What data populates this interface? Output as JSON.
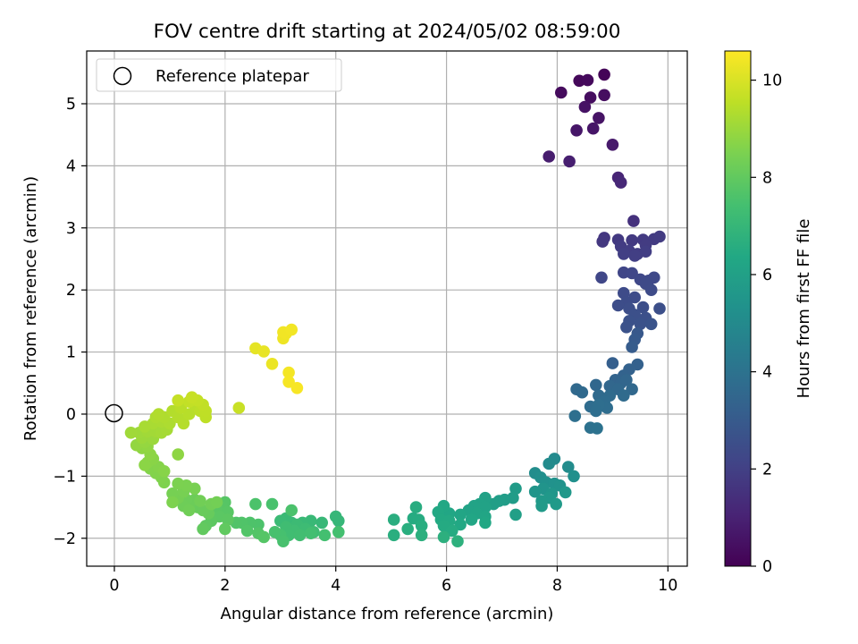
{
  "chart_data": {
    "type": "scatter",
    "title": "FOV centre drift starting at 2024/05/02 08:59:00",
    "xlabel": "Angular distance from reference (arcmin)",
    "ylabel": "Rotation from reference (arcmin)",
    "xlim": [
      -0.5,
      10.35
    ],
    "ylim": [
      -2.45,
      5.85
    ],
    "xticks": [
      "0",
      "2",
      "4",
      "6",
      "8",
      "10"
    ],
    "yticks": [
      "−2",
      "−1",
      "0",
      "1",
      "2",
      "3",
      "4",
      "5"
    ],
    "grid": true,
    "legend": {
      "position": "top-left",
      "entries": [
        "Reference platepar"
      ]
    },
    "reference_point": {
      "x": 0,
      "y": 0
    },
    "colorbar": {
      "label": "Hours from first FF file",
      "range": [
        0,
        10.6
      ],
      "ticks": [
        "0",
        "2",
        "4",
        "6",
        "8",
        "10"
      ],
      "colormap": "viridis"
    },
    "series": [
      {
        "points": [
          [
            8.85,
            5.47,
            0.1
          ],
          [
            8.4,
            5.37,
            0.2
          ],
          [
            8.55,
            5.38,
            0.25
          ],
          [
            8.07,
            5.18,
            0.3
          ],
          [
            8.6,
            5.1,
            0.35
          ],
          [
            8.85,
            5.14,
            0.4
          ],
          [
            8.5,
            4.95,
            0.5
          ],
          [
            8.75,
            4.77,
            0.55
          ],
          [
            8.65,
            4.6,
            0.6
          ],
          [
            8.35,
            4.57,
            0.65
          ],
          [
            9.0,
            4.34,
            0.75
          ],
          [
            7.85,
            4.15,
            0.85
          ],
          [
            8.22,
            4.07,
            0.9
          ],
          [
            9.1,
            3.81,
            1.1
          ],
          [
            9.15,
            3.73,
            1.2
          ],
          [
            9.38,
            3.11,
            1.5
          ],
          [
            8.85,
            2.84,
            1.7
          ],
          [
            8.82,
            2.78,
            1.72
          ],
          [
            9.1,
            2.81,
            1.75
          ],
          [
            9.35,
            2.8,
            1.78
          ],
          [
            9.55,
            2.81,
            1.8
          ],
          [
            9.75,
            2.82,
            1.82
          ],
          [
            9.85,
            2.86,
            1.84
          ],
          [
            9.6,
            2.72,
            1.85
          ],
          [
            9.15,
            2.7,
            1.86
          ],
          [
            9.3,
            2.63,
            1.88
          ],
          [
            9.45,
            2.58,
            1.9
          ],
          [
            9.6,
            2.62,
            1.92
          ],
          [
            9.2,
            2.58,
            1.94
          ],
          [
            9.4,
            2.55,
            1.95
          ],
          [
            9.2,
            2.28,
            2.2
          ],
          [
            9.35,
            2.27,
            2.22
          ],
          [
            8.8,
            2.2,
            2.25
          ],
          [
            9.5,
            2.17,
            2.28
          ],
          [
            9.65,
            2.15,
            2.3
          ],
          [
            9.75,
            2.2,
            2.32
          ],
          [
            9.6,
            2.1,
            2.35
          ],
          [
            9.7,
            2.0,
            2.38
          ],
          [
            9.2,
            1.95,
            2.4
          ],
          [
            9.4,
            1.88,
            2.42
          ],
          [
            9.25,
            1.8,
            2.45
          ],
          [
            9.1,
            1.75,
            2.48
          ],
          [
            9.3,
            1.7,
            2.5
          ],
          [
            9.55,
            1.72,
            2.52
          ],
          [
            9.85,
            1.7,
            2.55
          ],
          [
            9.4,
            1.6,
            2.58
          ],
          [
            9.6,
            1.55,
            2.6
          ],
          [
            9.3,
            1.5,
            2.62
          ],
          [
            9.5,
            1.45,
            2.65
          ],
          [
            9.25,
            1.4,
            2.68
          ],
          [
            9.7,
            1.45,
            2.7
          ],
          [
            9.45,
            1.3,
            2.9
          ],
          [
            9.4,
            1.2,
            3.0
          ],
          [
            9.35,
            1.08,
            3.05
          ],
          [
            9.0,
            0.82,
            3.2
          ],
          [
            9.45,
            0.8,
            3.25
          ],
          [
            9.3,
            0.72,
            3.3
          ],
          [
            9.2,
            0.62,
            3.35
          ],
          [
            9.05,
            0.55,
            3.4
          ],
          [
            9.15,
            0.5,
            3.45
          ],
          [
            9.25,
            0.55,
            3.48
          ],
          [
            8.95,
            0.45,
            3.5
          ],
          [
            8.7,
            0.47,
            3.52
          ],
          [
            9.1,
            0.4,
            3.55
          ],
          [
            9.35,
            0.4,
            3.58
          ],
          [
            8.35,
            0.4,
            3.6
          ],
          [
            8.45,
            0.35,
            3.62
          ],
          [
            8.75,
            0.3,
            3.65
          ],
          [
            8.95,
            0.3,
            3.68
          ],
          [
            9.2,
            0.3,
            3.7
          ],
          [
            8.85,
            0.2,
            3.72
          ],
          [
            8.6,
            0.12,
            3.75
          ],
          [
            8.9,
            0.1,
            3.78
          ],
          [
            8.75,
            0.15,
            3.8
          ],
          [
            8.7,
            0.05,
            3.82
          ],
          [
            8.32,
            -0.03,
            3.85
          ],
          [
            8.6,
            -0.22,
            3.95
          ],
          [
            8.72,
            -0.23,
            4.0
          ],
          [
            7.95,
            -0.72,
            5.0
          ],
          [
            7.85,
            -0.8,
            5.05
          ],
          [
            8.2,
            -0.85,
            5.1
          ],
          [
            7.6,
            -0.95,
            5.15
          ],
          [
            7.7,
            -1.02,
            5.2
          ],
          [
            8.3,
            -1.0,
            5.25
          ],
          [
            7.8,
            -1.1,
            5.3
          ],
          [
            7.95,
            -1.12,
            5.35
          ],
          [
            8.05,
            -1.15,
            5.4
          ],
          [
            7.75,
            -1.2,
            5.45
          ],
          [
            7.6,
            -1.25,
            5.5
          ],
          [
            7.9,
            -1.28,
            5.55
          ],
          [
            8.15,
            -1.26,
            5.6
          ],
          [
            7.85,
            -1.35,
            5.62
          ],
          [
            7.72,
            -1.4,
            5.65
          ],
          [
            7.98,
            -1.45,
            5.7
          ],
          [
            7.72,
            -1.48,
            5.72
          ],
          [
            7.25,
            -1.2,
            5.78
          ],
          [
            7.2,
            -1.35,
            5.8
          ],
          [
            7.05,
            -1.38,
            5.85
          ],
          [
            6.95,
            -1.4,
            5.88
          ],
          [
            6.85,
            -1.45,
            5.9
          ],
          [
            7.25,
            -1.62,
            5.95
          ],
          [
            6.7,
            -1.35,
            6.05
          ],
          [
            6.6,
            -1.45,
            6.08
          ],
          [
            6.7,
            -1.5,
            6.1
          ],
          [
            6.5,
            -1.48,
            6.12
          ],
          [
            6.4,
            -1.55,
            6.15
          ],
          [
            6.55,
            -1.6,
            6.18
          ],
          [
            6.7,
            -1.65,
            6.2
          ],
          [
            6.25,
            -1.62,
            6.22
          ],
          [
            6.45,
            -1.7,
            6.25
          ],
          [
            6.05,
            -1.6,
            6.28
          ],
          [
            5.95,
            -1.48,
            6.3
          ],
          [
            6.7,
            -1.75,
            6.32
          ],
          [
            6.25,
            -1.78,
            6.35
          ],
          [
            5.85,
            -1.58,
            6.38
          ],
          [
            5.9,
            -1.7,
            6.4
          ],
          [
            6.05,
            -1.72,
            6.42
          ],
          [
            5.95,
            -1.8,
            6.45
          ],
          [
            6.1,
            -1.88,
            6.48
          ],
          [
            5.4,
            -1.68,
            6.5
          ],
          [
            5.5,
            -1.7,
            6.52
          ],
          [
            5.45,
            -1.5,
            6.55
          ],
          [
            5.55,
            -1.8,
            6.58
          ],
          [
            5.05,
            -1.7,
            6.6
          ],
          [
            5.3,
            -1.85,
            6.62
          ],
          [
            5.05,
            -1.95,
            6.65
          ],
          [
            5.55,
            -1.95,
            6.68
          ],
          [
            5.95,
            -1.98,
            6.7
          ],
          [
            6.2,
            -2.05,
            6.72
          ],
          [
            4.0,
            -1.65,
            7.0
          ],
          [
            4.05,
            -1.72,
            7.02
          ],
          [
            3.75,
            -1.75,
            7.05
          ],
          [
            3.55,
            -1.72,
            7.08
          ],
          [
            3.4,
            -1.75,
            7.1
          ],
          [
            3.2,
            -1.75,
            7.12
          ],
          [
            3.1,
            -1.68,
            7.15
          ],
          [
            3.0,
            -1.72,
            7.18
          ],
          [
            3.3,
            -1.78,
            7.2
          ],
          [
            3.45,
            -1.85,
            7.22
          ],
          [
            3.6,
            -1.9,
            7.25
          ],
          [
            3.25,
            -1.88,
            7.28
          ],
          [
            3.1,
            -1.82,
            7.3
          ],
          [
            3.15,
            -1.95,
            7.32
          ],
          [
            3.35,
            -1.95,
            7.35
          ],
          [
            3.55,
            -1.92,
            7.38
          ],
          [
            3.8,
            -1.95,
            7.4
          ],
          [
            4.05,
            -1.9,
            7.42
          ],
          [
            3.0,
            -1.95,
            7.45
          ],
          [
            2.9,
            -1.9,
            7.48
          ],
          [
            3.05,
            -2.05,
            7.5
          ],
          [
            2.85,
            -1.45,
            7.52
          ],
          [
            3.2,
            -1.55,
            7.55
          ],
          [
            2.55,
            -1.45,
            7.58
          ],
          [
            2.6,
            -1.78,
            7.6
          ],
          [
            2.45,
            -1.75,
            7.62
          ],
          [
            2.3,
            -1.75,
            7.65
          ],
          [
            2.2,
            -1.75,
            7.68
          ],
          [
            2.4,
            -1.88,
            7.7
          ],
          [
            2.6,
            -1.92,
            7.72
          ],
          [
            2.7,
            -1.98,
            7.75
          ],
          [
            2.0,
            -1.42,
            7.78
          ],
          [
            1.95,
            -1.5,
            7.8
          ],
          [
            2.05,
            -1.58,
            7.82
          ],
          [
            1.85,
            -1.5,
            7.85
          ],
          [
            1.9,
            -1.65,
            7.88
          ],
          [
            2.05,
            -1.7,
            7.9
          ],
          [
            1.75,
            -1.72,
            7.92
          ],
          [
            1.65,
            -1.8,
            7.95
          ],
          [
            2.0,
            -1.85,
            7.98
          ],
          [
            1.6,
            -1.85,
            8.0
          ],
          [
            1.7,
            -1.6,
            8.1
          ],
          [
            1.5,
            -1.5,
            8.12
          ],
          [
            1.6,
            -1.55,
            8.15
          ],
          [
            1.35,
            -1.45,
            8.18
          ],
          [
            1.45,
            -1.38,
            8.2
          ],
          [
            1.3,
            -1.38,
            8.22
          ],
          [
            1.25,
            -1.48,
            8.25
          ],
          [
            1.35,
            -1.55,
            8.28
          ],
          [
            1.55,
            -1.4,
            8.3
          ],
          [
            1.75,
            -1.45,
            8.32
          ],
          [
            1.85,
            -1.42,
            8.35
          ],
          [
            1.15,
            -1.35,
            8.38
          ],
          [
            1.05,
            -1.28,
            8.4
          ],
          [
            1.25,
            -1.25,
            8.42
          ],
          [
            1.45,
            -1.2,
            8.45
          ],
          [
            1.3,
            -1.15,
            8.48
          ],
          [
            1.15,
            -1.12,
            8.5
          ],
          [
            1.05,
            -1.42,
            8.52
          ],
          [
            0.9,
            -1.1,
            8.55
          ],
          [
            0.85,
            -1.02,
            8.58
          ],
          [
            0.75,
            -0.95,
            8.6
          ],
          [
            0.65,
            -0.88,
            8.62
          ],
          [
            0.8,
            -0.85,
            8.65
          ],
          [
            0.9,
            -0.92,
            8.68
          ],
          [
            0.6,
            -0.78,
            8.7
          ],
          [
            0.7,
            -0.72,
            8.72
          ],
          [
            0.55,
            -0.82,
            8.75
          ],
          [
            0.65,
            -0.65,
            8.78
          ],
          [
            1.15,
            -0.65,
            8.8
          ],
          [
            0.5,
            -0.55,
            8.82
          ],
          [
            0.6,
            -0.52,
            8.85
          ],
          [
            0.4,
            -0.5,
            8.88
          ],
          [
            0.55,
            -0.45,
            8.9
          ],
          [
            0.7,
            -0.4,
            9.0
          ],
          [
            0.5,
            -0.38,
            9.02
          ],
          [
            0.45,
            -0.3,
            9.05
          ],
          [
            0.3,
            -0.3,
            9.08
          ],
          [
            0.6,
            -0.28,
            9.1
          ],
          [
            0.75,
            -0.28,
            9.12
          ],
          [
            0.85,
            -0.3,
            9.15
          ],
          [
            0.95,
            -0.25,
            9.18
          ],
          [
            0.55,
            -0.2,
            9.2
          ],
          [
            0.7,
            -0.15,
            9.22
          ],
          [
            0.85,
            -0.12,
            9.25
          ],
          [
            1.0,
            -0.15,
            9.28
          ],
          [
            0.75,
            -0.05,
            9.3
          ],
          [
            0.9,
            -0.05,
            9.32
          ],
          [
            0.8,
            0.0,
            9.35
          ],
          [
            1.05,
            0.05,
            9.38
          ],
          [
            1.15,
            -0.05,
            9.4
          ],
          [
            1.25,
            -0.15,
            9.42
          ],
          [
            1.35,
            0.0,
            9.45
          ],
          [
            1.2,
            0.1,
            9.48
          ],
          [
            1.45,
            0.15,
            9.5
          ],
          [
            1.55,
            0.05,
            9.52
          ],
          [
            1.65,
            -0.05,
            9.55
          ],
          [
            1.65,
            0.05,
            9.58
          ],
          [
            1.6,
            0.15,
            9.6
          ],
          [
            1.35,
            0.2,
            9.62
          ],
          [
            1.5,
            0.22,
            9.65
          ],
          [
            1.15,
            0.22,
            9.68
          ],
          [
            1.4,
            0.27,
            9.7
          ],
          [
            2.25,
            0.1,
            9.72
          ],
          [
            2.55,
            1.06,
            10.2
          ],
          [
            2.7,
            1.01,
            10.25
          ],
          [
            2.85,
            0.81,
            10.3
          ],
          [
            3.05,
            1.22,
            10.35
          ],
          [
            3.1,
            1.3,
            10.38
          ],
          [
            3.05,
            1.32,
            10.4
          ],
          [
            3.2,
            1.36,
            10.42
          ],
          [
            3.15,
            0.67,
            10.45
          ],
          [
            3.15,
            0.52,
            10.48
          ],
          [
            3.3,
            0.42,
            10.5
          ]
        ]
      }
    ]
  }
}
